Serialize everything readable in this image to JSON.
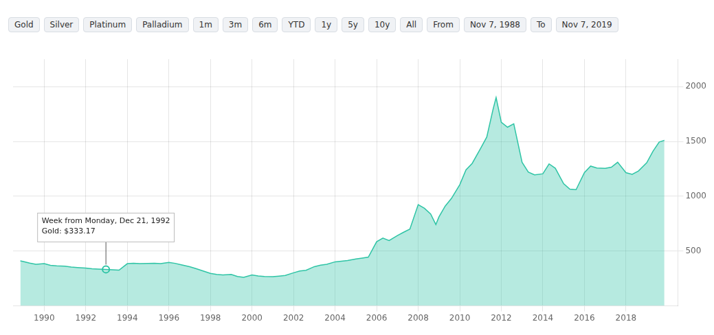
{
  "chart_data": {
    "type": "line",
    "x": [
      1988.85,
      1989.0,
      1989.3,
      1989.6,
      1990.0,
      1990.3,
      1990.6,
      1991.0,
      1991.3,
      1991.6,
      1992.0,
      1992.3,
      1992.6,
      1992.97,
      1993.3,
      1993.6,
      1994.0,
      1994.3,
      1994.6,
      1995.0,
      1995.3,
      1995.6,
      1996.0,
      1996.3,
      1996.6,
      1997.0,
      1997.3,
      1997.6,
      1998.0,
      1998.3,
      1998.6,
      1999.0,
      1999.3,
      1999.6,
      2000.0,
      2000.3,
      2000.6,
      2001.0,
      2001.3,
      2001.6,
      2002.0,
      2002.3,
      2002.6,
      2003.0,
      2003.3,
      2003.6,
      2004.0,
      2004.3,
      2004.6,
      2005.0,
      2005.3,
      2005.6,
      2006.0,
      2006.3,
      2006.6,
      2007.0,
      2007.3,
      2007.6,
      2008.0,
      2008.3,
      2008.6,
      2008.85,
      2009.0,
      2009.3,
      2009.6,
      2010.0,
      2010.3,
      2010.6,
      2011.0,
      2011.3,
      2011.6,
      2011.75,
      2012.0,
      2012.3,
      2012.6,
      2013.0,
      2013.3,
      2013.6,
      2014.0,
      2014.3,
      2014.6,
      2015.0,
      2015.3,
      2015.6,
      2016.0,
      2016.3,
      2016.6,
      2017.0,
      2017.3,
      2017.6,
      2018.0,
      2018.3,
      2018.6,
      2019.0,
      2019.3,
      2019.6,
      2019.85
    ],
    "values": [
      410,
      405,
      390,
      380,
      385,
      370,
      365,
      362,
      355,
      350,
      345,
      338,
      336,
      333,
      330,
      326,
      385,
      388,
      386,
      387,
      388,
      386,
      396,
      388,
      375,
      358,
      340,
      322,
      296,
      287,
      283,
      287,
      268,
      260,
      282,
      273,
      268,
      267,
      272,
      278,
      302,
      318,
      325,
      358,
      372,
      380,
      402,
      408,
      414,
      428,
      436,
      445,
      585,
      618,
      596,
      642,
      672,
      700,
      924,
      890,
      838,
      742,
      812,
      910,
      980,
      1105,
      1240,
      1300,
      1435,
      1540,
      1790,
      1900,
      1675,
      1630,
      1660,
      1310,
      1220,
      1195,
      1205,
      1295,
      1255,
      1115,
      1065,
      1060,
      1215,
      1275,
      1258,
      1255,
      1265,
      1310,
      1215,
      1200,
      1230,
      1305,
      1410,
      1495,
      1510
    ],
    "color": "#2ec4a5",
    "xlim": [
      1988.5,
      2020.5
    ],
    "xticks": [
      1990,
      1992,
      1994,
      1996,
      1998,
      2000,
      2002,
      2004,
      2006,
      2008,
      2010,
      2012,
      2014,
      2016,
      2018
    ],
    "ylim": [
      0,
      2250
    ],
    "yticks": [
      500,
      1000,
      1500,
      2000
    ],
    "grid": true,
    "annotations": [
      "Gold",
      "Silver",
      "Platinum",
      "Palladium",
      "1m",
      "3m",
      "6m",
      "YTD",
      "1y",
      "5y",
      "10y",
      "All",
      "From",
      "Nov 7, 1988",
      "To",
      "Nov 7, 2019",
      {
        "text": "Week from Monday, Dec 21, 1992\nGold: $333.17",
        "x": 1992.97,
        "y": 333.17
      }
    ]
  }
}
